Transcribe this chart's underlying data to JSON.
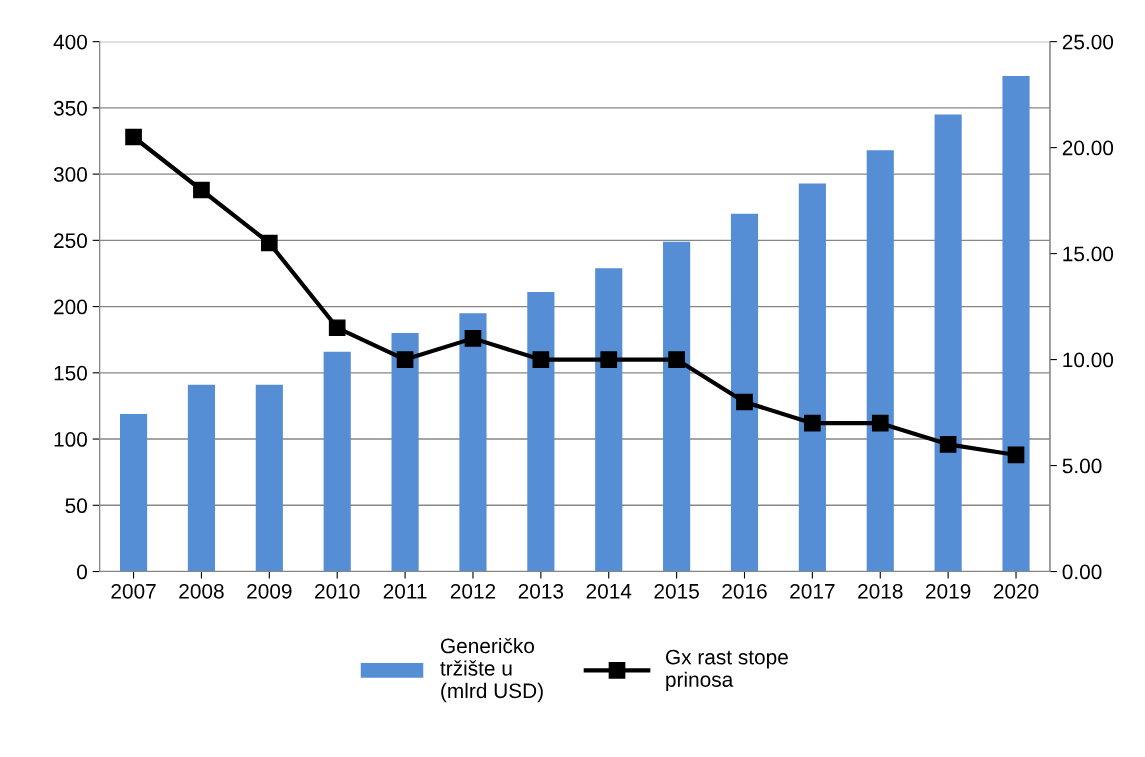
{
  "chart_data": {
    "type": "bar",
    "categories": [
      "2007",
      "2008",
      "2009",
      "2010",
      "2011",
      "2012",
      "2013",
      "2014",
      "2015",
      "2016",
      "2017",
      "2018",
      "2019",
      "2020"
    ],
    "series": [
      {
        "name": "Generičko\ntržište u\n(mlrd USD)",
        "color": "#558ed5",
        "values": [
          119,
          141,
          141,
          166,
          180,
          195,
          211,
          229,
          249,
          270,
          293,
          318,
          345,
          374
        ]
      },
      {
        "name": "Gx rast stope\nprinosa",
        "type": "line",
        "axis": "y2",
        "color": "#000000",
        "values": [
          20.5,
          18.0,
          15.5,
          11.5,
          10,
          11,
          10,
          10,
          10,
          8,
          7,
          7,
          6,
          5.5
        ]
      }
    ],
    "ylim": [
      0,
      400
    ],
    "yticks": [
      0,
      50,
      100,
      150,
      200,
      250,
      300,
      350,
      400
    ],
    "y2lim": [
      0,
      25
    ],
    "y2ticks": [
      {
        "value": 0,
        "label": "0.00"
      },
      {
        "value": 5,
        "label": "5.00"
      },
      {
        "value": 10,
        "label": "10.00"
      },
      {
        "value": 15,
        "label": "15.00"
      },
      {
        "value": 20,
        "label": "20.00"
      },
      {
        "value": 25,
        "label": "25.00"
      }
    ],
    "grid": "y",
    "legend": "bottom",
    "marker": "square",
    "line_style": "solid"
  }
}
